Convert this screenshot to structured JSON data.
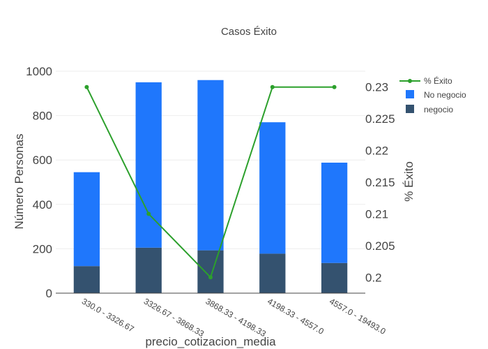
{
  "chart_data": {
    "type": "bar",
    "title": "Casos Éxito",
    "barmode": "stack",
    "xlabel": "precio_cotizacion_media",
    "ylabel": "Número Personas",
    "y2label": "% Éxito",
    "categories": [
      "330.0 - 3326.67",
      "3326.67 - 3868.33",
      "3868.33 - 4198.33",
      "4198.33 - 4557.0",
      "4557.0 - 19493.0"
    ],
    "ylim": [
      0,
      1000
    ],
    "y_ticks": [
      "0",
      "200",
      "400",
      "600",
      "800",
      "1000"
    ],
    "y2lim": [
      0.1975,
      0.2325
    ],
    "y2_ticks": [
      "0.2",
      "0.205",
      "0.21",
      "0.215",
      "0.22",
      "0.225",
      "0.23"
    ],
    "grid": true,
    "legend_position": "top-right",
    "series": [
      {
        "name": "negocio",
        "kind": "bar",
        "axis": "y",
        "color": "#34526f",
        "values": [
          122,
          205,
          193,
          178,
          136
        ]
      },
      {
        "name": "No negocio",
        "kind": "bar",
        "axis": "y",
        "color": "#1f77fc",
        "values": [
          423,
          745,
          767,
          592,
          452
        ]
      },
      {
        "name": "% Éxito",
        "kind": "line",
        "axis": "y2",
        "color": "#2ca02c",
        "values": [
          0.23,
          0.21,
          0.2,
          0.23,
          0.23
        ]
      }
    ],
    "legend": [
      "% Éxito",
      "No negocio",
      "negocio"
    ]
  }
}
